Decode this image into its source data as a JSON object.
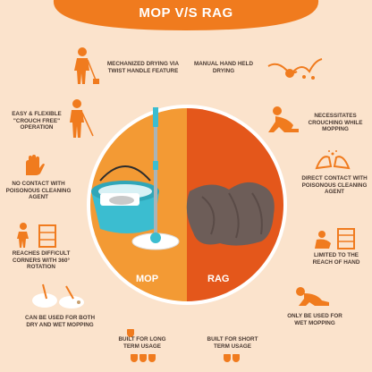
{
  "title": "MOP V/S RAG",
  "colors": {
    "accent": "#f07b1e",
    "background": "#fbe3cc",
    "mop_side": "#f39a34",
    "rag_side": "#e4571b",
    "mop_bucket": "#3bbdd0"
  },
  "left_features": [
    {
      "icon": "mop-worker-icon",
      "text": "MECHANIZED DRYING VIA TWIST HANDLE FEATURE"
    },
    {
      "icon": "standing-mop-icon",
      "text": "EASY & FLEXIBLE \"CROUCH FREE\" OPERATION"
    },
    {
      "icon": "glove-hands-icon",
      "text": "NO CONTACT WITH POISONOUS CLEANING AGENT"
    },
    {
      "icon": "corner-cleaning-icon",
      "text": "REACHES DIFFICULT CORNERS WITH 360° ROTATION"
    },
    {
      "icon": "dry-wet-mop-icon",
      "text": "CAN BE USED FOR BOTH DRY AND WET MOPPING"
    },
    {
      "icon": "shield-icon",
      "text": "BUILT FOR LONG TERM USAGE"
    }
  ],
  "right_features": [
    {
      "icon": "hand-wringing-icon",
      "text": "MANUAL HAND HELD DRYING"
    },
    {
      "icon": "crouching-person-icon",
      "text": "NECESSITATES CROUCHING WHILE MOPPING"
    },
    {
      "icon": "bare-hands-icon",
      "text": "DIRECT CONTACT WITH POISONOUS CLEANING AGENT"
    },
    {
      "icon": "limited-reach-icon",
      "text": "LIMITED TO THE REACH OF HAND"
    },
    {
      "icon": "kneeling-person-icon",
      "text": "ONLY BE USED FOR WET MOPPING"
    },
    {
      "icon": "shield-icon",
      "text": "BUILT FOR SHORT TERM USAGE"
    }
  ],
  "center": {
    "mop_label": "MOP",
    "rag_label": "RAG"
  }
}
